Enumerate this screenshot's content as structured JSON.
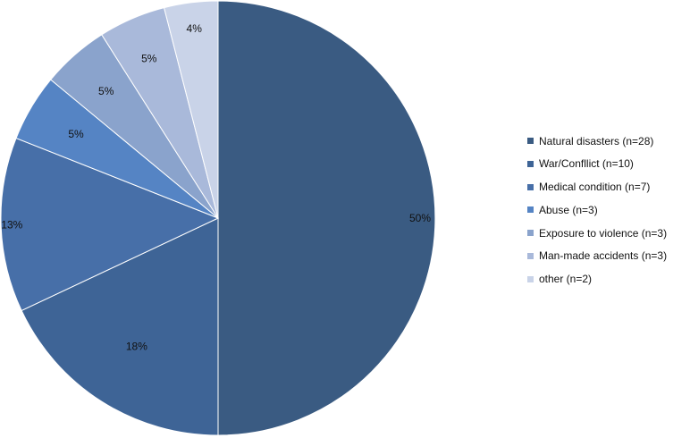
{
  "chart_data": {
    "type": "pie",
    "title": "",
    "start_angle_deg": 0,
    "direction": "clockwise",
    "categories": [
      "Natural disasters (n=28)",
      "War/Confllict (n=10)",
      "Medical condition (n=7)",
      "Abuse (n=3)",
      "Exposure to violence (n=3)",
      "Man-made accidents (n=3)",
      "other (n=2)"
    ],
    "counts": [
      28,
      10,
      7,
      3,
      3,
      3,
      2
    ],
    "values": [
      50,
      18,
      13,
      5,
      5,
      5,
      4
    ],
    "data_labels": [
      "50%",
      "18%",
      "13%",
      "5%",
      "5%",
      "5%",
      "4%"
    ],
    "colors": [
      "#3a5b82",
      "#3e6496",
      "#476fa8",
      "#5584c4",
      "#8aa3cc",
      "#a9b9da",
      "#c9d3e8"
    ],
    "legend_position": "right"
  }
}
